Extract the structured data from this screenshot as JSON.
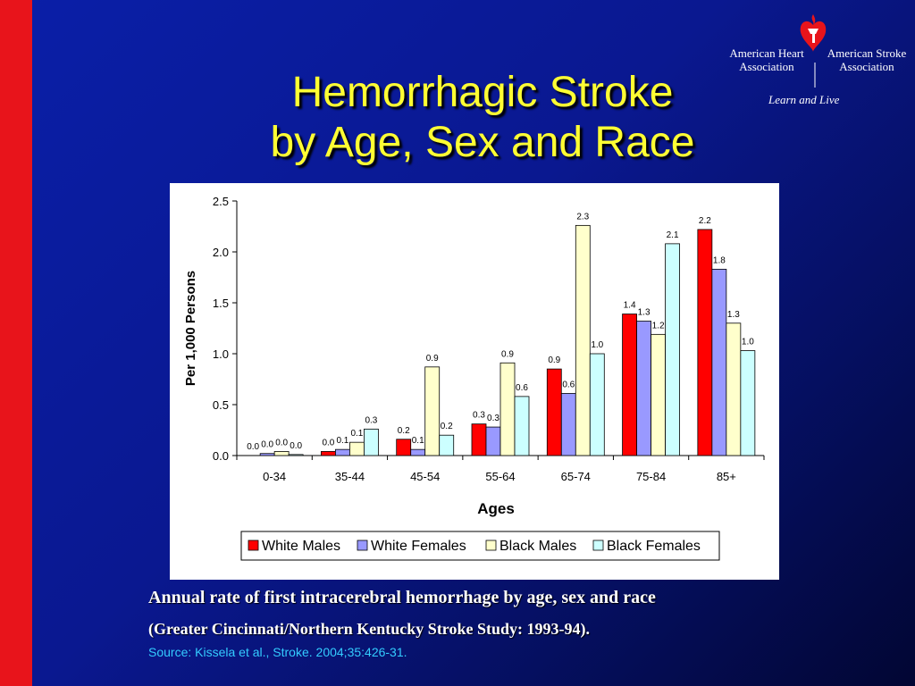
{
  "slide": {
    "title_line1": "Hemorrhagic Stroke",
    "title_line2": "by Age, Sex and Race",
    "caption_line1": "Annual rate of first intracerebral hemorrhage by age, sex and race",
    "caption_line2": "(Greater Cincinnati/Northern Kentucky Stroke Study: 1993-94).",
    "source": "Source: Kissela et al., Stroke. 2004;35:426-31.",
    "accent_bar_color": "#e8141b",
    "title_color": "#ffff33",
    "source_color": "#33ccff"
  },
  "logo": {
    "org1_line1": "American Heart",
    "org1_line2": "Association",
    "org2_line1": "American Stroke",
    "org2_line2": "Association",
    "tagline": "Learn and Live",
    "icon": "heart-torch-icon"
  },
  "chart_data": {
    "type": "bar",
    "categories": [
      "0-34",
      "35-44",
      "45-54",
      "55-64",
      "65-74",
      "75-84",
      "85+"
    ],
    "series": [
      {
        "name": "White Males",
        "color": "#ff0000",
        "values": [
          0.0,
          0.04,
          0.16,
          0.31,
          0.85,
          1.39,
          2.22
        ],
        "labels": [
          "0.0",
          "0.0",
          "0.2",
          "0.3",
          "0.9",
          "1.4",
          "2.2"
        ]
      },
      {
        "name": "White Females",
        "color": "#9999ff",
        "values": [
          0.02,
          0.06,
          0.06,
          0.28,
          0.61,
          1.32,
          1.83
        ],
        "labels": [
          "0.0",
          "0.1",
          "0.1",
          "0.3",
          "0.6",
          "1.3",
          "1.8"
        ]
      },
      {
        "name": "Black Males",
        "color": "#ffffcc",
        "values": [
          0.04,
          0.13,
          0.87,
          0.91,
          2.26,
          1.19,
          1.3
        ],
        "labels": [
          "0.0",
          "0.1",
          "0.9",
          "0.9",
          "2.3",
          "1.2",
          "1.3"
        ]
      },
      {
        "name": "Black Females",
        "color": "#ccffff",
        "values": [
          0.01,
          0.26,
          0.2,
          0.58,
          1.0,
          2.08,
          1.03
        ],
        "labels": [
          "0.0",
          "0.3",
          "0.2",
          "0.6",
          "1.0",
          "2.1",
          "1.0"
        ]
      }
    ],
    "yticks": [
      "0.0",
      "0.5",
      "1.0",
      "1.5",
      "2.0",
      "2.5"
    ],
    "xlabel": "Ages",
    "ylabel": "Per 1,000 Persons",
    "ylim": [
      0,
      2.5
    ],
    "legend_position": "bottom",
    "grid": false
  }
}
